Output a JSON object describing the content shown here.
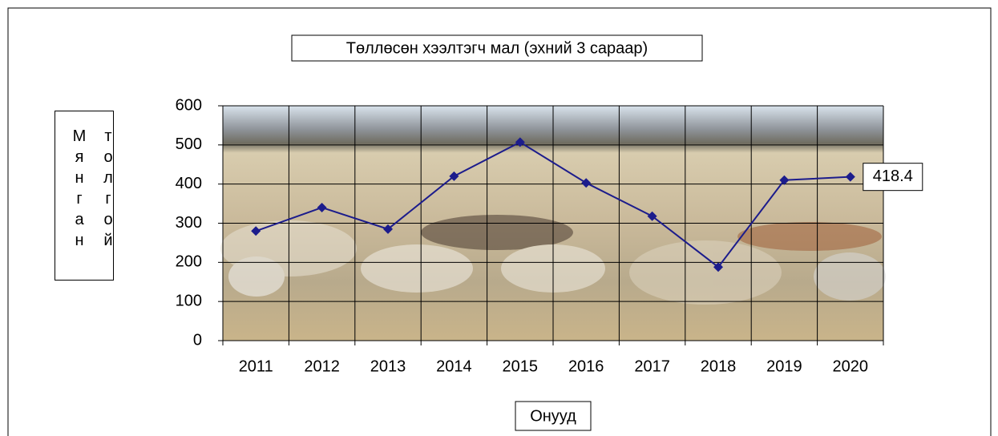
{
  "chart_data": {
    "type": "line",
    "title": "Төллөсөн хээлтэгч  мал (эхний 3 сараар)",
    "x_label": "Онууд",
    "y_label": "Мянган толгой",
    "categories": [
      "2011",
      "2012",
      "2013",
      "2014",
      "2015",
      "2016",
      "2017",
      "2018",
      "2019",
      "2020"
    ],
    "values": [
      280,
      340,
      285,
      420,
      507,
      403,
      318,
      188,
      410,
      418.4
    ],
    "value_labels": [
      null,
      null,
      null,
      null,
      null,
      null,
      null,
      null,
      null,
      "418.4"
    ],
    "color": "#1c1c8c",
    "ylim": [
      0,
      600
    ],
    "yticks": [
      0,
      100,
      200,
      300,
      400,
      500,
      600
    ],
    "grid": true
  }
}
